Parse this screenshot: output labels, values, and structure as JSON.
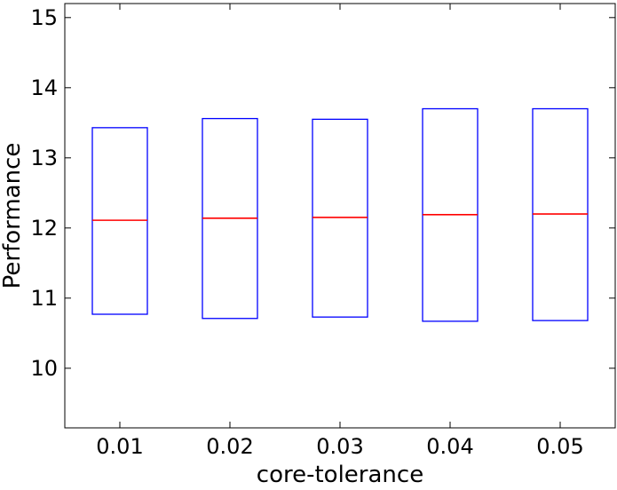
{
  "chart_data": {
    "type": "box",
    "xlabel": "core-tolerance",
    "ylabel": "Performance",
    "categories": [
      "0.01",
      "0.02",
      "0.03",
      "0.04",
      "0.05"
    ],
    "boxes": [
      {
        "category": "0.01",
        "q1": 10.77,
        "median": 12.11,
        "q3": 13.43
      },
      {
        "category": "0.02",
        "q1": 10.71,
        "median": 12.14,
        "q3": 13.56
      },
      {
        "category": "0.03",
        "q1": 10.73,
        "median": 12.15,
        "q3": 13.55
      },
      {
        "category": "0.04",
        "q1": 10.67,
        "median": 12.19,
        "q3": 13.7
      },
      {
        "category": "0.05",
        "q1": 10.68,
        "median": 12.2,
        "q3": 13.7
      }
    ],
    "yticks": [
      "10",
      "11",
      "12",
      "13",
      "14",
      "15"
    ],
    "ylim": [
      9.15,
      15.2
    ],
    "grid": false,
    "colors": {
      "box": "#0000ff",
      "median": "#ff0000",
      "axes": "#000000"
    }
  }
}
